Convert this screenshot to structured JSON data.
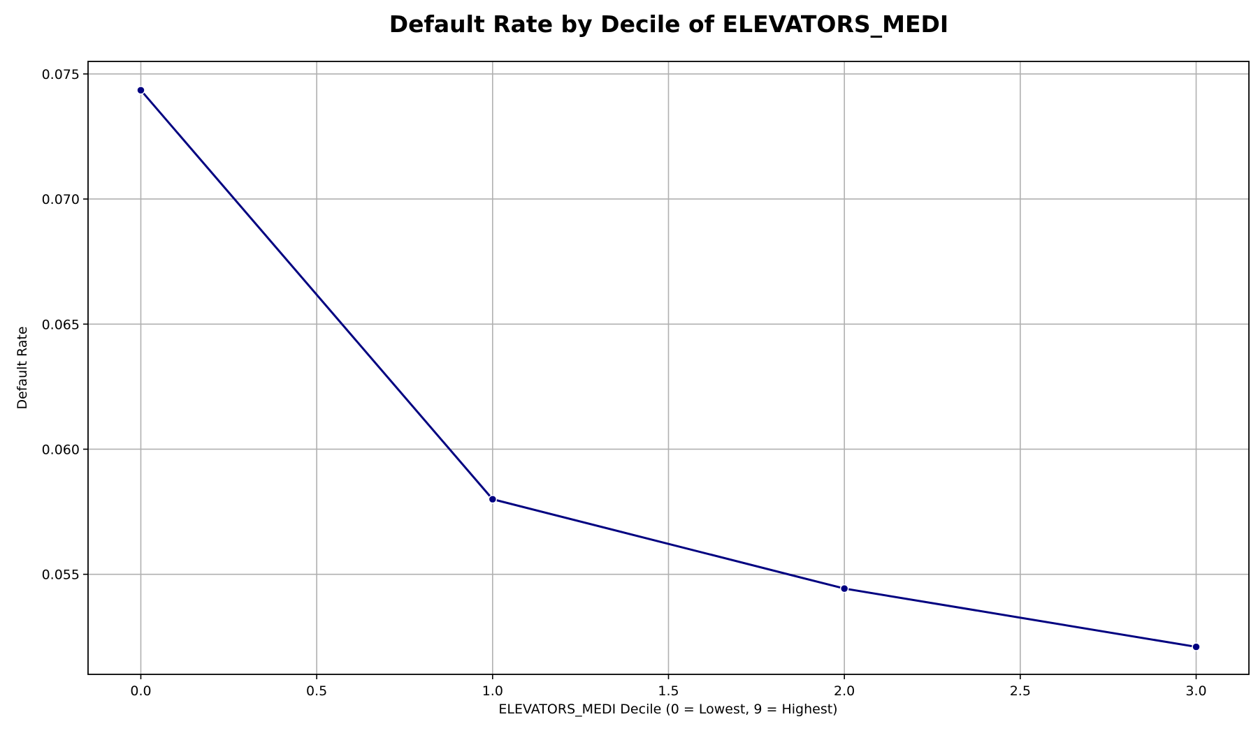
{
  "chart_data": {
    "type": "line",
    "title": "Default Rate by Decile of ELEVATORS_MEDI",
    "xlabel": "ELEVATORS_MEDI Decile (0 = Lowest, 9 = Highest)",
    "ylabel": "Default Rate",
    "xlim": [
      -0.15,
      3.15
    ],
    "ylim": [
      0.051,
      0.0755
    ],
    "x_ticks": [
      0.0,
      0.5,
      1.0,
      1.5,
      2.0,
      2.5,
      3.0
    ],
    "x_tick_labels": [
      "0.0",
      "0.5",
      "1.0",
      "1.5",
      "2.0",
      "2.5",
      "3.0"
    ],
    "y_ticks": [
      0.055,
      0.06,
      0.065,
      0.07,
      0.075
    ],
    "y_tick_labels": [
      "0.055",
      "0.060",
      "0.065",
      "0.070",
      "0.075"
    ],
    "grid": true,
    "series": [
      {
        "x": [
          0,
          1,
          2,
          3
        ],
        "y": [
          0.07435,
          0.058,
          0.05443,
          0.0521
        ],
        "color": "#000080",
        "marker": "circle"
      }
    ]
  }
}
